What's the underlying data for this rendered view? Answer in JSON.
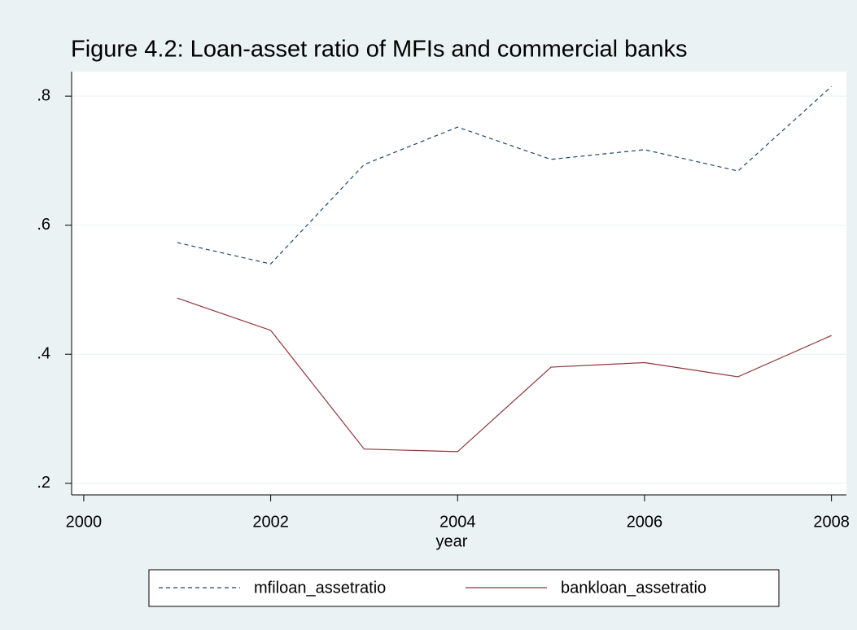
{
  "chart_data": {
    "type": "line",
    "title": "Figure 4.2: Loan-asset ratio of MFIs and commercial banks",
    "x_label": "year",
    "x": [
      2001,
      2002,
      2003,
      2004,
      2005,
      2006,
      2007,
      2008
    ],
    "series": [
      {
        "name": "mfiloan_assetratio",
        "color": "#1a476f",
        "style": "dashed",
        "values": [
          0.573,
          0.54,
          0.694,
          0.752,
          0.702,
          0.717,
          0.684,
          0.815
        ]
      },
      {
        "name": "bankloan_assetratio",
        "color": "#90353b",
        "style": "solid",
        "values": [
          0.487,
          0.437,
          0.253,
          0.249,
          0.38,
          0.387,
          0.365,
          0.429
        ]
      }
    ],
    "xlim": [
      1999.87,
      2008.16
    ],
    "ylim": [
      0.182,
      0.838
    ],
    "xticks": [
      2000,
      2002,
      2004,
      2006,
      2008
    ],
    "yticks": [
      {
        "value": 0.2,
        "label": ".2"
      },
      {
        "value": 0.4,
        "label": ".4"
      },
      {
        "value": 0.6,
        "label": ".6"
      },
      {
        "value": 0.8,
        "label": ".8"
      }
    ],
    "grid": true,
    "legend": "bottom"
  }
}
